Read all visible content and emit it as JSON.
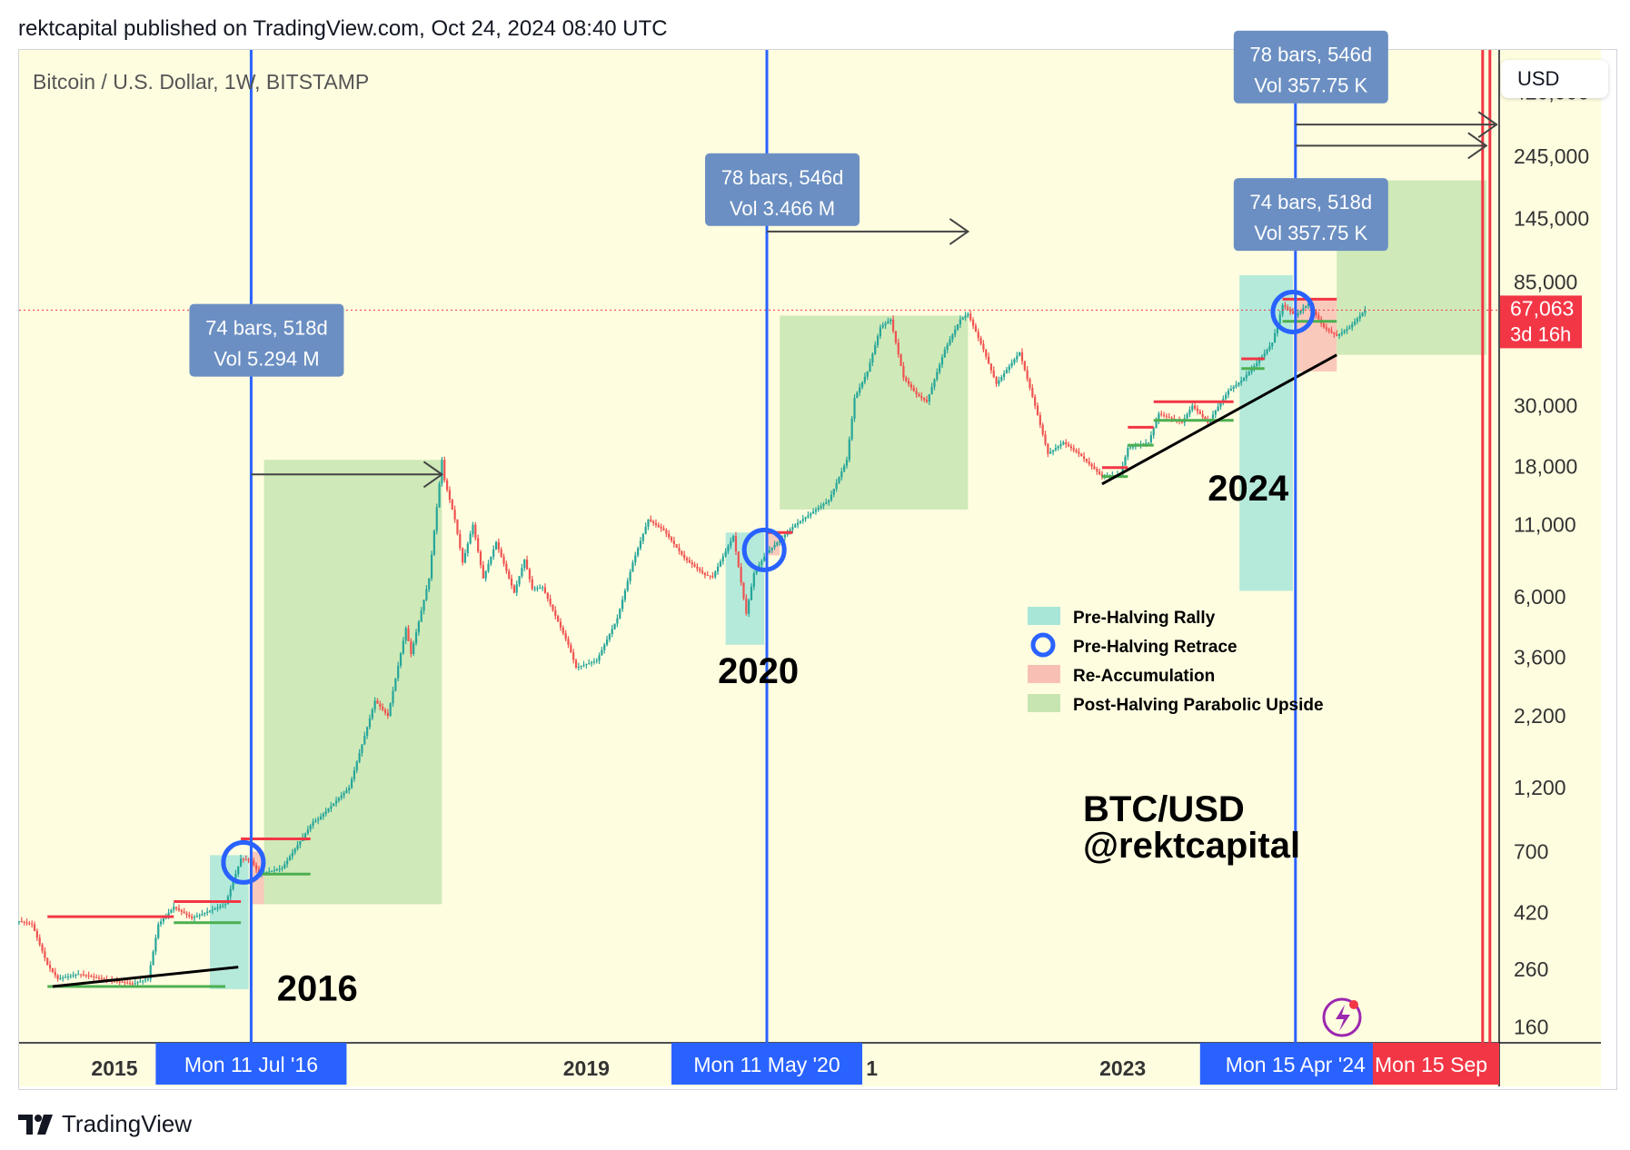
{
  "header": {
    "text": "rektcapital published on TradingView.com, Oct 24, 2024 08:40 UTC"
  },
  "symbol_title": "Bitcoin / U.S. Dollar, 1W, BITSTAMP",
  "currency_button": "USD",
  "footer": {
    "brand": "TradingView"
  },
  "colors": {
    "background": "#fffde0",
    "candle_up": "#26a69a",
    "candle_down": "#ef5350",
    "halving_line": "#2962ff",
    "end_line": "#f23645",
    "pre_halving_rally": "#a8e6d8",
    "re_accumulation": "#f8c0b4",
    "post_halving": "#c7e5b0",
    "info_box": "#6b8fc2",
    "price_label": "#f23645",
    "support": "#4caf50",
    "resistance": "#f23645"
  },
  "chart_data": {
    "type": "line",
    "title": "Bitcoin / U.S. Dollar, 1W, BITSTAMP",
    "scale": "log",
    "ylim": [
      140,
      600000
    ],
    "xlim": [
      "2014-10-20",
      "2025-10-20"
    ],
    "y_ticks": [
      "420,000",
      "245,000",
      "145,000",
      "85,000",
      "30,000",
      "18,000",
      "11,000",
      "6,000",
      "3,600",
      "2,200",
      "1,200",
      "700",
      "420",
      "260",
      "160"
    ],
    "x_ticks": [
      "2015",
      "2019",
      "2023"
    ],
    "partial_x_tick": "1",
    "current_price": {
      "value": 67063,
      "label": "67,063",
      "countdown": "3d 16h"
    },
    "series": [
      {
        "x": [
          "2014-10-20",
          "2014-11-24",
          "2015-01-05",
          "2015-02-02",
          "2015-04-01",
          "2015-06-01",
          "2015-08-24",
          "2015-10-05",
          "2015-11-02",
          "2015-12-14",
          "2016-02-01",
          "2016-05-02",
          "2016-06-13",
          "2016-07-11",
          "2016-08-01",
          "2016-10-03",
          "2016-12-26",
          "2017-01-09",
          "2017-03-06",
          "2017-04-03",
          "2017-05-22",
          "2017-06-12",
          "2017-07-17",
          "2017-09-04",
          "2017-09-18",
          "2017-11-06",
          "2017-12-11",
          "2017-12-18",
          "2018-01-15",
          "2018-02-05",
          "2018-03-05",
          "2018-04-02",
          "2018-05-07",
          "2018-06-25",
          "2018-07-23",
          "2018-08-13",
          "2018-09-10",
          "2018-11-19",
          "2018-12-10",
          "2019-02-04",
          "2019-04-01",
          "2019-05-13",
          "2019-06-24",
          "2019-08-05",
          "2019-09-30",
          "2019-11-25",
          "2019-12-16",
          "2020-02-10",
          "2020-03-16",
          "2020-04-06",
          "2020-05-11",
          "2020-07-27",
          "2020-10-26",
          "2020-12-14",
          "2021-01-04",
          "2021-02-08",
          "2021-03-15",
          "2021-04-12",
          "2021-05-17",
          "2021-06-21",
          "2021-07-19",
          "2021-09-06",
          "2021-10-18",
          "2021-11-08",
          "2021-12-20",
          "2022-01-24",
          "2022-03-28",
          "2022-05-09",
          "2022-06-13",
          "2022-07-25",
          "2022-09-05",
          "2022-11-07",
          "2022-12-26",
          "2023-01-16",
          "2023-03-13",
          "2023-04-10",
          "2023-06-12",
          "2023-07-10",
          "2023-08-21",
          "2023-10-16",
          "2023-11-20",
          "2024-01-08",
          "2024-02-12",
          "2024-03-11",
          "2024-04-15",
          "2024-05-20",
          "2024-07-01",
          "2024-08-05",
          "2024-09-09",
          "2024-10-21"
        ],
        "y": [
          390,
          380,
          270,
          240,
          250,
          240,
          230,
          240,
          380,
          440,
          400,
          450,
          660,
          650,
          580,
          610,
          900,
          920,
          1100,
          1200,
          2000,
          2500,
          2200,
          4600,
          3700,
          7000,
          19000,
          16000,
          11500,
          8000,
          11000,
          7000,
          9500,
          6200,
          8200,
          6400,
          6500,
          4000,
          3300,
          3500,
          5000,
          8000,
          11500,
          10500,
          8300,
          7200,
          7100,
          10000,
          5200,
          7300,
          8700,
          11000,
          13500,
          19000,
          32000,
          40000,
          58000,
          62000,
          38000,
          33000,
          31000,
          48000,
          62000,
          65000,
          48000,
          36000,
          47000,
          30000,
          20000,
          22000,
          20000,
          16500,
          16800,
          21000,
          22000,
          28000,
          26000,
          30000,
          26000,
          34000,
          37000,
          44000,
          51000,
          70000,
          64000,
          71000,
          58000,
          54000,
          58000,
          67063
        ]
      }
    ],
    "halving_markers": [
      {
        "date": "2016-07-11",
        "label": "Mon 11 Jul '16"
      },
      {
        "date": "2020-05-11",
        "label": "Mon 11 May '20"
      },
      {
        "date": "2024-04-15",
        "label": "Mon 15 Apr '24"
      }
    ],
    "end_marker": {
      "date": "2025-09-15",
      "label": "Mon 15 Sep"
    },
    "cycle_labels": [
      {
        "text": "2016",
        "date": "2016-09-19",
        "price": 200
      },
      {
        "text": "2020",
        "date": "2019-12-30",
        "price": 2900
      },
      {
        "text": "2024",
        "date": "2023-08-21",
        "price": 13500
      }
    ],
    "measure_boxes": [
      {
        "line1": "74 bars, 518d",
        "line2": "Vol 5.294 M",
        "date": "2016-08-22",
        "price": 52000
      },
      {
        "line1": "78 bars, 546d",
        "line2": "Vol 3.466 M",
        "date": "2020-06-22",
        "price": 185000
      },
      {
        "line1": "78 bars, 546d",
        "line2": "Vol 357.75 K",
        "date": "2024-05-27",
        "price": 520000
      },
      {
        "line1": "74 bars, 518d",
        "line2": "Vol 357.75 K",
        "date": "2024-05-27",
        "price": 150000
      }
    ],
    "legend": [
      {
        "label": "Pre-Halving Rally",
        "swatch": "rect",
        "color": "#a8e6d8"
      },
      {
        "label": "Pre-Halving Retrace",
        "swatch": "circle",
        "color": "#2962ff"
      },
      {
        "label": "Re-Accumulation",
        "swatch": "rect",
        "color": "#f8c0b4"
      },
      {
        "label": "Post-Halving Parabolic Upside",
        "swatch": "rect",
        "color": "#c7e5b0"
      }
    ],
    "annotation": {
      "line1": "BTC/USD",
      "line2": "@rektcapital"
    }
  }
}
